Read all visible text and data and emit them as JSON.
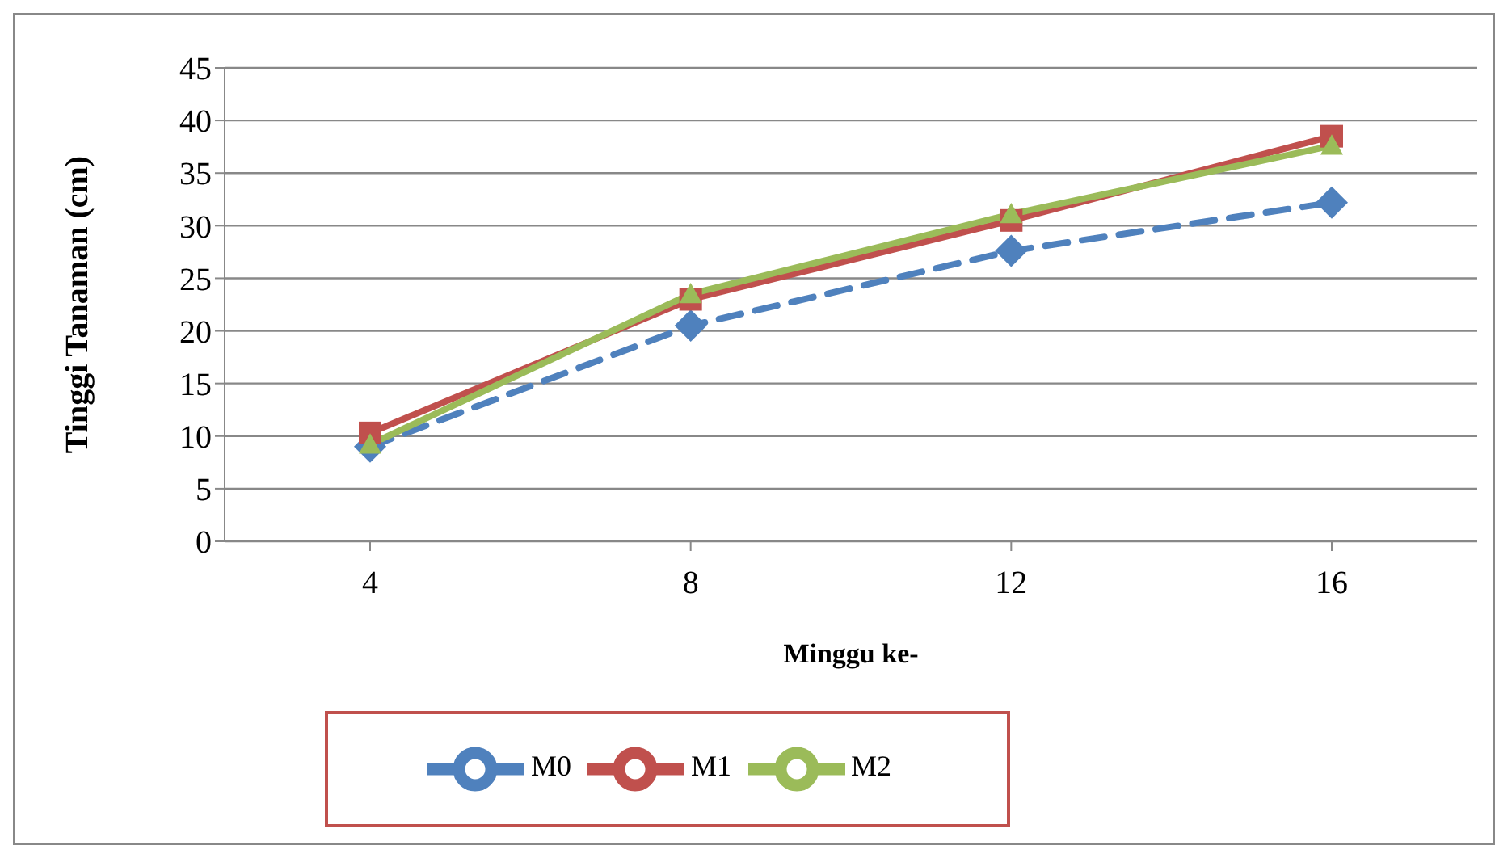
{
  "chart_data": {
    "type": "line",
    "xlabel": "Minggu ke-",
    "ylabel": "Tinggi Tanaman (cm)",
    "categories": [
      "4",
      "8",
      "12",
      "16"
    ],
    "series": [
      {
        "name": "M0",
        "color": "#4f81bd",
        "values": [
          9.0,
          20.5,
          27.6,
          32.2
        ],
        "marker": "diamond",
        "line_style": "dashed"
      },
      {
        "name": "M1",
        "color": "#c0504d",
        "values": [
          10.3,
          23.0,
          30.5,
          38.5
        ],
        "marker": "square",
        "line_style": "solid"
      },
      {
        "name": "M2",
        "color": "#9bbb59",
        "values": [
          9.2,
          23.5,
          31.1,
          37.6
        ],
        "marker": "triangle",
        "line_style": "solid"
      }
    ],
    "ylim": [
      0,
      45
    ],
    "yticks": [
      0,
      5,
      10,
      15,
      20,
      25,
      30,
      35,
      40,
      45
    ],
    "grid": "y",
    "legend": "bottom"
  }
}
